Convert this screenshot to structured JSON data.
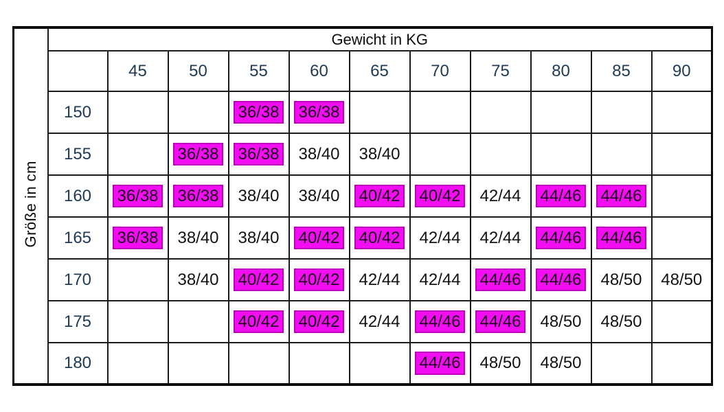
{
  "colors": {
    "highlight_bg": "#F20DF2",
    "highlight_border": "#BA00BA",
    "header_text": "#1F3A54",
    "cell_text": "#121212",
    "grid_line": "#1C1C1C"
  },
  "chart_data": {
    "type": "table",
    "title": "Gewicht in KG",
    "row_axis_label": "Größe in cm",
    "columns": [
      "45",
      "50",
      "55",
      "60",
      "65",
      "70",
      "75",
      "80",
      "85",
      "90"
    ],
    "highlight_meaning": "magenta-highlighted recommended size",
    "rows": [
      {
        "label": "150",
        "cells": [
          {
            "value": "",
            "highlighted": false
          },
          {
            "value": "",
            "highlighted": false
          },
          {
            "value": "36/38",
            "highlighted": true
          },
          {
            "value": "36/38",
            "highlighted": true
          },
          {
            "value": "",
            "highlighted": false
          },
          {
            "value": "",
            "highlighted": false
          },
          {
            "value": "",
            "highlighted": false
          },
          {
            "value": "",
            "highlighted": false
          },
          {
            "value": "",
            "highlighted": false
          },
          {
            "value": "",
            "highlighted": false
          }
        ]
      },
      {
        "label": "155",
        "cells": [
          {
            "value": "",
            "highlighted": false
          },
          {
            "value": "36/38",
            "highlighted": true
          },
          {
            "value": "36/38",
            "highlighted": true
          },
          {
            "value": "38/40",
            "highlighted": false
          },
          {
            "value": "38/40",
            "highlighted": false
          },
          {
            "value": "",
            "highlighted": false
          },
          {
            "value": "",
            "highlighted": false
          },
          {
            "value": "",
            "highlighted": false
          },
          {
            "value": "",
            "highlighted": false
          },
          {
            "value": "",
            "highlighted": false
          }
        ]
      },
      {
        "label": "160",
        "cells": [
          {
            "value": "36/38",
            "highlighted": true
          },
          {
            "value": "36/38",
            "highlighted": true
          },
          {
            "value": "38/40",
            "highlighted": false
          },
          {
            "value": "38/40",
            "highlighted": false
          },
          {
            "value": "40/42",
            "highlighted": true
          },
          {
            "value": "40/42",
            "highlighted": true
          },
          {
            "value": "42/44",
            "highlighted": false
          },
          {
            "value": "44/46",
            "highlighted": true
          },
          {
            "value": "44/46",
            "highlighted": true
          },
          {
            "value": "",
            "highlighted": false
          }
        ]
      },
      {
        "label": "165",
        "cells": [
          {
            "value": "36/38",
            "highlighted": true
          },
          {
            "value": "38/40",
            "highlighted": false
          },
          {
            "value": "38/40",
            "highlighted": false
          },
          {
            "value": "40/42",
            "highlighted": true
          },
          {
            "value": "40/42",
            "highlighted": true
          },
          {
            "value": "42/44",
            "highlighted": false
          },
          {
            "value": "42/44",
            "highlighted": false
          },
          {
            "value": "44/46",
            "highlighted": true
          },
          {
            "value": "44/46",
            "highlighted": true
          },
          {
            "value": "",
            "highlighted": false
          }
        ]
      },
      {
        "label": "170",
        "cells": [
          {
            "value": "",
            "highlighted": false
          },
          {
            "value": "38/40",
            "highlighted": false
          },
          {
            "value": "40/42",
            "highlighted": true
          },
          {
            "value": "40/42",
            "highlighted": true
          },
          {
            "value": "42/44",
            "highlighted": false
          },
          {
            "value": "42/44",
            "highlighted": false
          },
          {
            "value": "44/46",
            "highlighted": true
          },
          {
            "value": "44/46",
            "highlighted": true
          },
          {
            "value": "48/50",
            "highlighted": false
          },
          {
            "value": "48/50",
            "highlighted": false
          }
        ]
      },
      {
        "label": "175",
        "cells": [
          {
            "value": "",
            "highlighted": false
          },
          {
            "value": "",
            "highlighted": false
          },
          {
            "value": "40/42",
            "highlighted": true
          },
          {
            "value": "40/42",
            "highlighted": true
          },
          {
            "value": "42/44",
            "highlighted": false
          },
          {
            "value": "44/46",
            "highlighted": true
          },
          {
            "value": "44/46",
            "highlighted": true
          },
          {
            "value": "48/50",
            "highlighted": false
          },
          {
            "value": "48/50",
            "highlighted": false
          },
          {
            "value": "",
            "highlighted": false
          }
        ]
      },
      {
        "label": "180",
        "cells": [
          {
            "value": "",
            "highlighted": false
          },
          {
            "value": "",
            "highlighted": false
          },
          {
            "value": "",
            "highlighted": false
          },
          {
            "value": "",
            "highlighted": false
          },
          {
            "value": "",
            "highlighted": false
          },
          {
            "value": "44/46",
            "highlighted": true
          },
          {
            "value": "48/50",
            "highlighted": false
          },
          {
            "value": "48/50",
            "highlighted": false
          },
          {
            "value": "",
            "highlighted": false
          },
          {
            "value": "",
            "highlighted": false
          }
        ]
      }
    ]
  }
}
